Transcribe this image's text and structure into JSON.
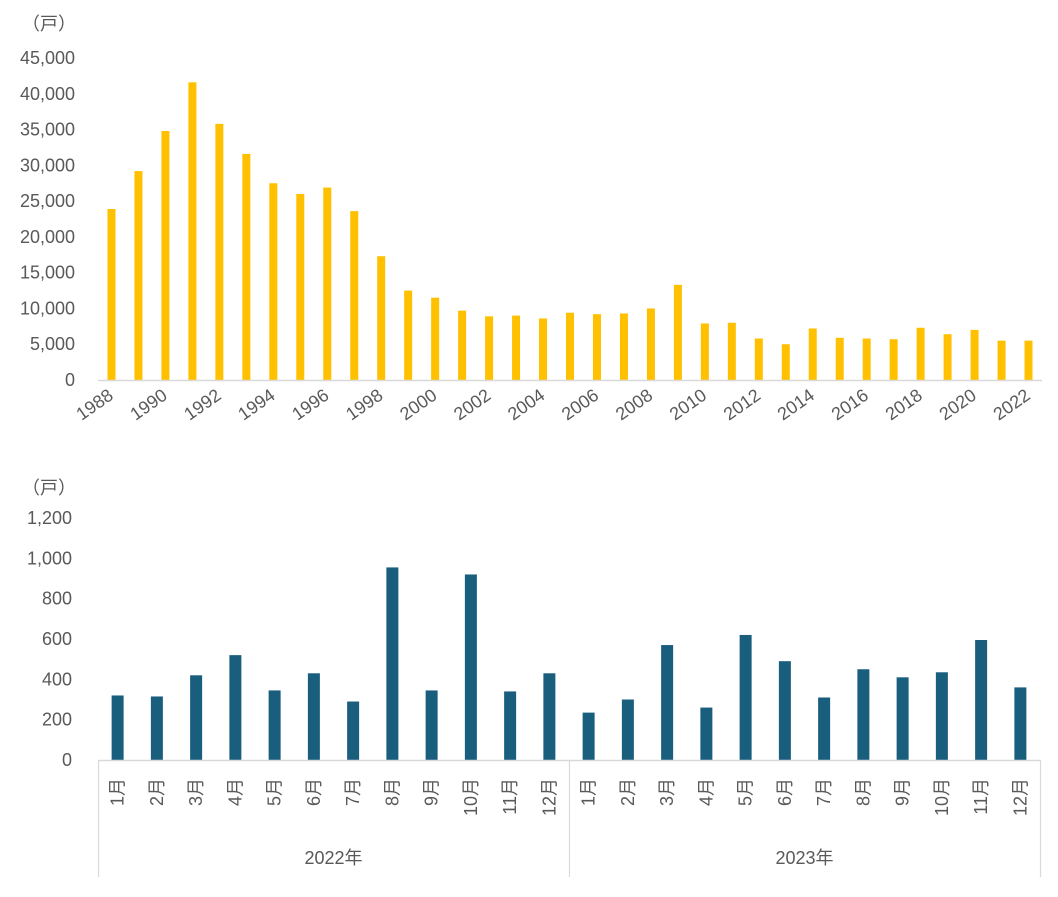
{
  "chart_data": [
    {
      "type": "bar",
      "unit_label": "（戸）",
      "x_tick_labels": [
        "1988",
        "1990",
        "1992",
        "1994",
        "1996",
        "1998",
        "2000",
        "2002",
        "2004",
        "2006",
        "2008",
        "2010",
        "2012",
        "2014",
        "2016",
        "2018",
        "2020",
        "2022"
      ],
      "categories": [
        "1988",
        "1989",
        "1990",
        "1991",
        "1992",
        "1993",
        "1994",
        "1995",
        "1996",
        "1997",
        "1998",
        "1999",
        "2000",
        "2001",
        "2002",
        "2003",
        "2004",
        "2005",
        "2006",
        "2007",
        "2008",
        "2009",
        "2010",
        "2011",
        "2012",
        "2013",
        "2014",
        "2015",
        "2016",
        "2017",
        "2018",
        "2019",
        "2020",
        "2021",
        "2022"
      ],
      "values": [
        23900,
        29200,
        34800,
        41600,
        35800,
        31600,
        27500,
        26000,
        26900,
        23600,
        17300,
        12500,
        11500,
        9700,
        8900,
        9000,
        8600,
        9400,
        9200,
        9300,
        10000,
        13300,
        7900,
        8000,
        5800,
        5000,
        7200,
        5900,
        5800,
        5700,
        7300,
        6400,
        7000,
        5500,
        5500
      ],
      "y_ticks": [
        "0",
        "5,000",
        "10,000",
        "15,000",
        "20,000",
        "25,000",
        "30,000",
        "35,000",
        "40,000",
        "45,000"
      ],
      "ylim": [
        0,
        45000
      ],
      "color": "#ffc000"
    },
    {
      "type": "bar",
      "unit_label": "（戸）",
      "groups": [
        {
          "label": "2022年",
          "months": [
            "1月",
            "2月",
            "3月",
            "4月",
            "5月",
            "6月",
            "7月",
            "8月",
            "9月",
            "10月",
            "11月",
            "12月"
          ],
          "values": [
            320,
            315,
            420,
            520,
            345,
            430,
            290,
            955,
            345,
            920,
            340,
            430
          ]
        },
        {
          "label": "2023年",
          "months": [
            "1月",
            "2月",
            "3月",
            "4月",
            "5月",
            "6月",
            "7月",
            "8月",
            "9月",
            "10月",
            "11月",
            "12月"
          ],
          "values": [
            235,
            300,
            570,
            260,
            620,
            490,
            310,
            450,
            410,
            435,
            595,
            360
          ]
        }
      ],
      "y_ticks": [
        "0",
        "200",
        "400",
        "600",
        "800",
        "1,000",
        "1,200"
      ],
      "ylim": [
        0,
        1200
      ],
      "color": "#1a5e7e"
    }
  ]
}
